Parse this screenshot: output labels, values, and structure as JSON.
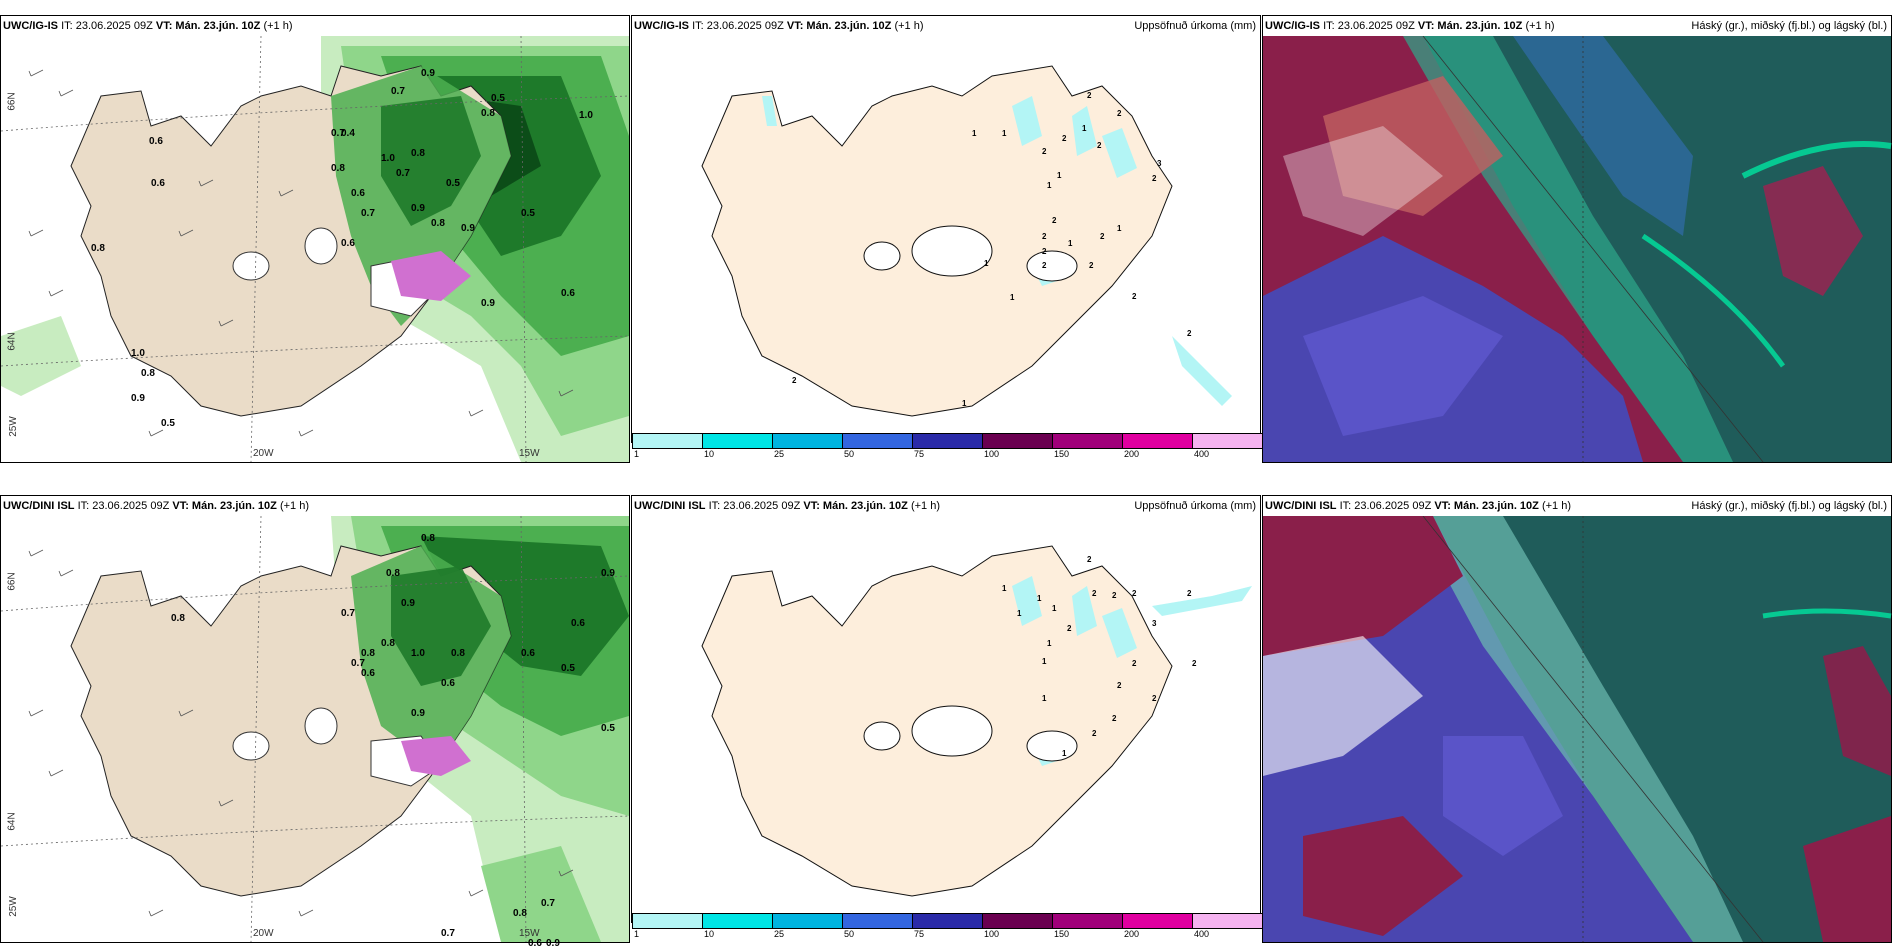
{
  "rows": [
    {
      "p1": {
        "source": "UWC/IG-IS",
        "it": "IT: 23.06.2025 09Z",
        "vt": "VT: Mán. 23.jún. 10Z",
        "lead": "(+1 h)"
      },
      "p2": {
        "source": "UWC/IG-IS",
        "it": "IT: 23.06.2025 09Z",
        "vt": "VT: Mán. 23.jún. 10Z",
        "lead": "(+1 h)",
        "right": "Uppsöfnuð úrkoma (mm)"
      },
      "p3": {
        "source": "UWC/IG-IS",
        "it": "IT: 23.06.2025 09Z",
        "vt": "VT: Mán. 23.jún. 10Z",
        "lead": "(+1 h)",
        "right": "Háský (gr.), miðský (fj.bl.) og lágský (bl.)"
      }
    },
    {
      "p1": {
        "source": "UWC/DINI ISL",
        "it": "IT: 23.06.2025 09Z",
        "vt": "VT: Mán. 23.jún. 10Z",
        "lead": "(+1 h)"
      },
      "p2": {
        "source": "UWC/DINI ISL",
        "it": "IT: 23.06.2025 09Z",
        "vt": "VT: Mán. 23.jún. 10Z",
        "lead": "(+1 h)",
        "right": "Uppsöfnuð úrkoma (mm)"
      },
      "p3": {
        "source": "UWC/DINI ISL",
        "it": "IT: 23.06.2025 09Z",
        "vt": "VT: Mán. 23.jún. 10Z",
        "lead": "(+1 h)",
        "right": "Háský (gr.), miðský (fj.bl.) og lágský (bl.)"
      }
    }
  ],
  "axis_labels": {
    "lat66": "66N",
    "lat64": "64N",
    "lat64b": "64N",
    "lon20": "20W",
    "lon15": "15W",
    "lon25": "25W"
  },
  "colorbar": {
    "colors": [
      "#b3f5f5",
      "#00e5e5",
      "#00b4e0",
      "#3366e0",
      "#2a2aa8",
      "#6a0050",
      "#a0007a",
      "#e000a0",
      "#f5b3f0"
    ],
    "ticks": [
      "1",
      "10",
      "25",
      "50",
      "75",
      "100",
      "150",
      "200",
      "400"
    ]
  },
  "map_values_top": [
    "0.7",
    "0.6",
    "1.0",
    "0.5",
    "0.9",
    "0.8",
    "0.5",
    "0.6",
    "0.7",
    "0.6",
    "0.7",
    "0.9",
    "0.8",
    "0.6",
    "0.9",
    "1.0",
    "0.8",
    "0.7",
    "0.5",
    "0.9",
    "0.6",
    "0.5",
    "0.8",
    "0.4",
    "1.0",
    "0.8",
    "0.9",
    "0.8"
  ],
  "map_values_bottom": [
    "0.8",
    "0.9",
    "0.6",
    "0.7",
    "0.8",
    "0.9",
    "0.6",
    "0.8",
    "0.7",
    "0.8",
    "0.9",
    "0.5",
    "1.0",
    "0.8",
    "0.6",
    "0.7",
    "0.8",
    "0.6",
    "0.7",
    "0.9",
    "0.5",
    "0.8",
    "0.6"
  ],
  "precip_counts_top": [
    "2",
    "2",
    "1",
    "2",
    "3",
    "2",
    "1",
    "1",
    "2",
    "1",
    "1",
    "2",
    "2",
    "2",
    "2",
    "1",
    "2",
    "2",
    "1",
    "1",
    "2",
    "2",
    "1",
    "2",
    "2",
    "1"
  ],
  "precip_counts_bottom": [
    "2",
    "2",
    "1",
    "1",
    "2",
    "3",
    "2",
    "1",
    "1",
    "2",
    "1",
    "1",
    "2",
    "2",
    "2",
    "1",
    "2",
    "2",
    "1",
    "2",
    "2"
  ]
}
